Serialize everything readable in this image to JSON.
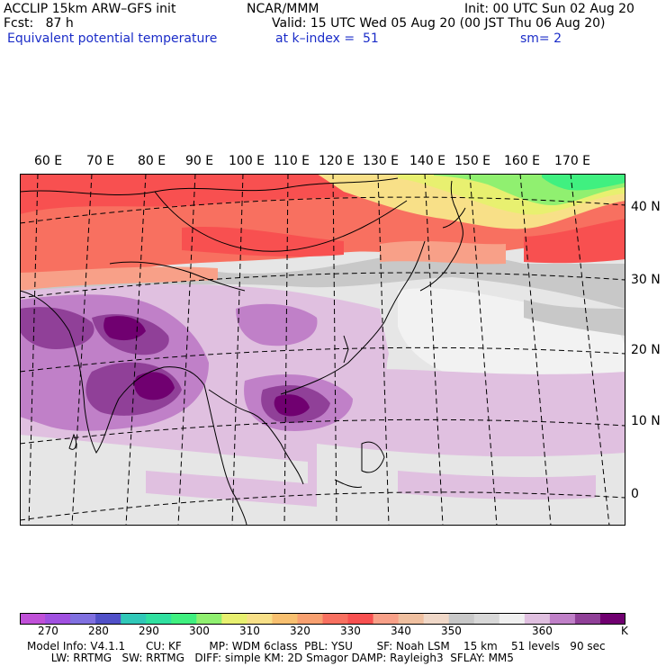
{
  "header": {
    "model": "ACCLIP 15km ARW–GFS init",
    "org": "NCAR/MMM",
    "init": "Init: 00 UTC Sun 02 Aug 20",
    "fcst": "Fcst:   87 h",
    "valid": "Valid: 15 UTC Wed 05 Aug 20 (00 JST Thu 06 Aug 20)",
    "field": "Equivalent potential temperature",
    "level": "at k–index =  51",
    "smooth": "sm= 2"
  },
  "map": {
    "lon_labels": [
      "60 E",
      "70 E",
      "80 E",
      "90 E",
      "100 E",
      "110 E",
      "120 E",
      "130 E",
      "140 E",
      "150 E",
      "160 E",
      "170 E"
    ],
    "lat_labels": [
      "40 N",
      "30 N",
      "20 N",
      "10 N",
      "0"
    ],
    "colors": {
      "ocean": "#e6e6e6",
      "background": "#ffffff",
      "coast": "#000000"
    }
  },
  "colorbar": {
    "colors": [
      "#c050d8",
      "#a050e0",
      "#8070e0",
      "#5050c8",
      "#30c8b8",
      "#30e0a0",
      "#40f080",
      "#90f070",
      "#e8f070",
      "#f8e088",
      "#f8c070",
      "#f8a070",
      "#f87060",
      "#f85050",
      "#f8a088",
      "#f0c0a0",
      "#f0d8c8",
      "#c8c8c8",
      "#d8d8d8",
      "#f0f0f0",
      "#e0c0e0",
      "#c080c8",
      "#904098",
      "#700070"
    ],
    "ticks": [
      "270",
      "280",
      "290",
      "300",
      "310",
      "320",
      "330",
      "340",
      "350",
      "360"
    ],
    "units": "K"
  },
  "footer": {
    "line1": "Model Info: V4.1.1      CU: KF        MP: WDM 6class  PBL: YSU       SF: Noah LSM    15 km    51 levels   90 sec",
    "line2": "       LW: RRTMG   SW: RRTMG   DIFF: simple KM: 2D Smagor DAMP: Rayleigh3  SFLAY: MM5"
  }
}
